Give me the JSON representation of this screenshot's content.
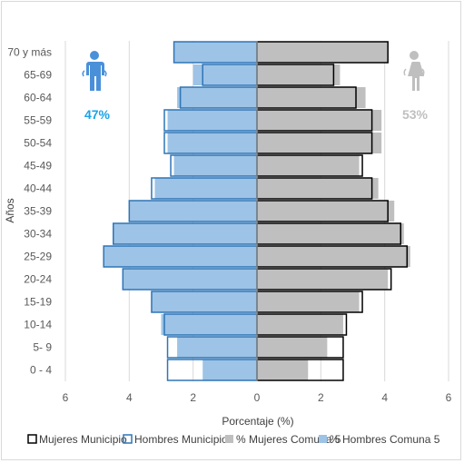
{
  "chart_data": {
    "type": "bar",
    "orientation": "horizontal",
    "xlabel": "Porcentaje (%)",
    "ylabel": "Años",
    "xlim": [
      -6,
      6
    ],
    "xtick_labels": [
      "6",
      "4",
      "2",
      "0",
      "2",
      "4",
      "6"
    ],
    "categories": [
      "0 - 4",
      "5- 9",
      "10-14",
      "15-19",
      "20-24",
      "25-29",
      "30-34",
      "35-39",
      "40-44",
      "45-49",
      "50-54",
      "55-59",
      "60-64",
      "65-69",
      "70 y más"
    ],
    "series": [
      {
        "name": "% Hombres Comuna 5",
        "color": "#9dc3e6",
        "side": "left",
        "style": "filled",
        "values": [
          1.7,
          2.5,
          3.0,
          3.3,
          4.2,
          4.8,
          4.5,
          4.0,
          3.2,
          2.6,
          2.8,
          2.8,
          2.5,
          2.0,
          2.6
        ]
      },
      {
        "name": "% Mujeres Comuna 5",
        "color": "#bfbfbf",
        "side": "right",
        "style": "filled",
        "values": [
          1.6,
          2.2,
          2.7,
          3.2,
          4.1,
          4.8,
          4.6,
          4.3,
          3.8,
          3.2,
          3.9,
          3.9,
          3.4,
          2.6,
          4.1
        ]
      },
      {
        "name": "Hombres Municipio",
        "color": "#2e75b6",
        "side": "left",
        "style": "outline",
        "values": [
          2.8,
          2.8,
          2.9,
          3.3,
          4.2,
          4.8,
          4.5,
          4.0,
          3.3,
          2.7,
          2.9,
          2.9,
          2.4,
          1.7,
          2.6
        ]
      },
      {
        "name": "Mujeres Municipio",
        "color": "#000000",
        "side": "right",
        "style": "outline",
        "values": [
          2.7,
          2.7,
          2.8,
          3.3,
          4.2,
          4.7,
          4.5,
          4.1,
          3.6,
          3.3,
          3.6,
          3.6,
          3.1,
          2.4,
          4.1
        ]
      }
    ],
    "legend_order": [
      "Mujeres Municipio",
      "Hombres Municipio",
      "% Mujeres Comuna 5",
      "% Hombres Comuna 5"
    ],
    "legend_position": "bottom",
    "grid": "vertical"
  },
  "annotations": {
    "male_pct": "47%",
    "female_pct": "53%",
    "male_color": "#1aa3e8",
    "female_color": "#bfbfbf",
    "male_icon": "male-person-icon",
    "female_icon": "female-person-icon"
  }
}
